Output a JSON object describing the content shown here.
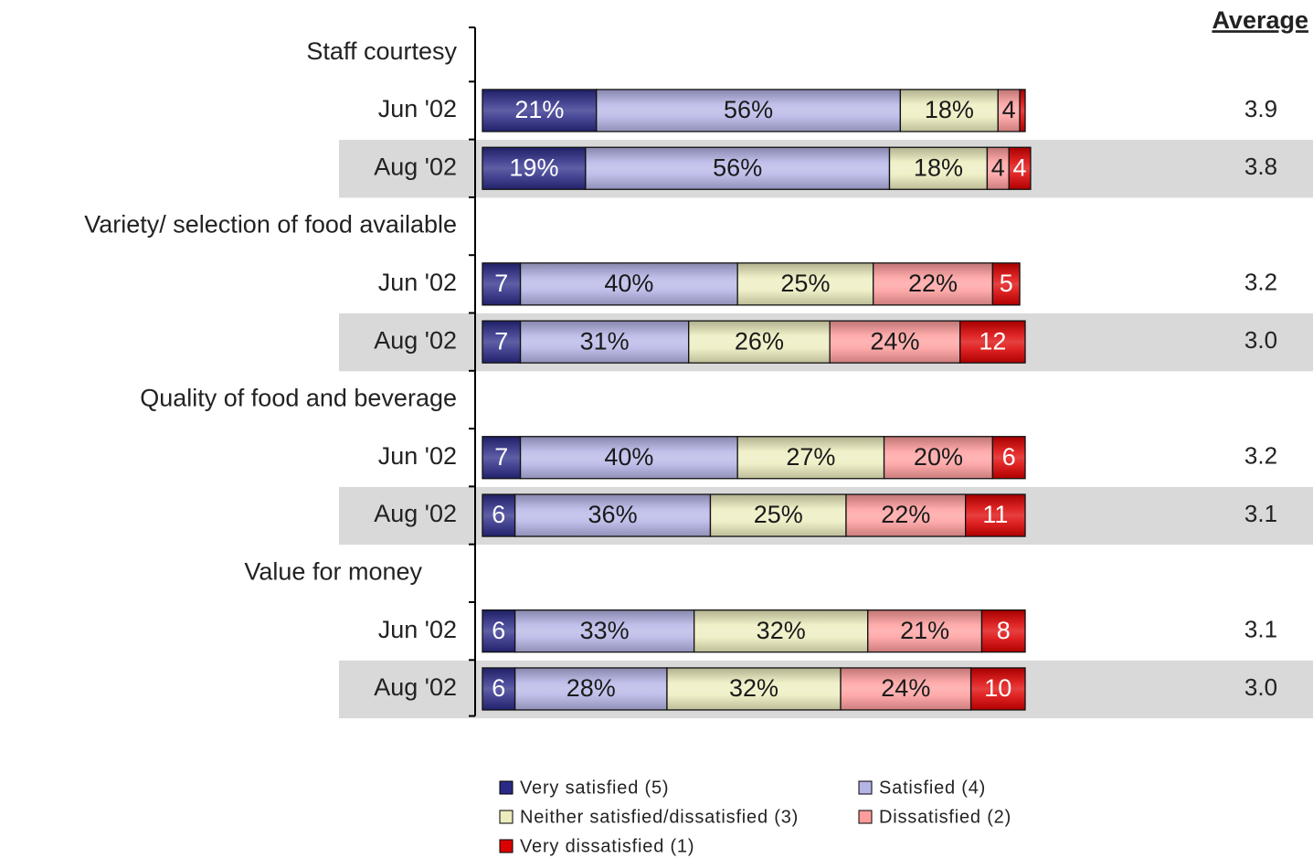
{
  "chart_data": {
    "type": "stacked-bar-horizontal",
    "groups": [
      {
        "name": "Staff courtesy",
        "categories": [
          "Jun '02",
          "Aug '02"
        ]
      },
      {
        "name": "Variety/ selection of food available",
        "categories": [
          "Jun '02",
          "Aug '02"
        ]
      },
      {
        "name": "Quality of food and beverage",
        "categories": [
          "Jun '02",
          "Aug '02"
        ]
      },
      {
        "name": "Value for money",
        "categories": [
          "Jun '02",
          "Aug '02"
        ]
      }
    ],
    "series": [
      {
        "name": "Very satisfied (5)",
        "color": "#2a2a86",
        "text_color": "#ffffff",
        "values": [
          21,
          19,
          7,
          7,
          7,
          6,
          6,
          6
        ],
        "value_labels": [
          "21%",
          "19%",
          "7",
          "7",
          "7",
          "6",
          "6",
          "6"
        ]
      },
      {
        "name": "Satisfied (4)",
        "color": "#b4b4e6",
        "text_color": "#1a1a1a",
        "values": [
          56,
          56,
          40,
          31,
          40,
          36,
          33,
          28
        ],
        "value_labels": [
          "56%",
          "56%",
          "40%",
          "31%",
          "40%",
          "36%",
          "33%",
          "28%"
        ]
      },
      {
        "name": "Neither satisfied/dissatisfied (3)",
        "color": "#ececbe",
        "text_color": "#1a1a1a",
        "values": [
          18,
          18,
          25,
          26,
          27,
          25,
          32,
          32
        ],
        "value_labels": [
          "18%",
          "18%",
          "25%",
          "26%",
          "27%",
          "25%",
          "32%",
          "32%"
        ]
      },
      {
        "name": "Dissatisfied (2)",
        "color": "#ff9c9c",
        "text_color": "#1a1a1a",
        "values": [
          4,
          4,
          22,
          24,
          20,
          22,
          21,
          24
        ],
        "value_labels": [
          "4",
          "4",
          "22%",
          "24%",
          "20%",
          "22%",
          "21%",
          "24%"
        ]
      },
      {
        "name": "Very dissatisfied (1)",
        "color": "#dc0000",
        "text_color": "#ffffff",
        "values": [
          1,
          4,
          5,
          12,
          6,
          11,
          8,
          10
        ],
        "value_labels": [
          null,
          "4",
          "5",
          "12",
          "6",
          "11",
          "8",
          "10"
        ]
      }
    ],
    "average": {
      "title": "Average",
      "values": [
        3.9,
        3.8,
        3.2,
        3.0,
        3.2,
        3.1,
        3.1,
        3.0
      ],
      "value_labels": [
        "3.9",
        "3.8",
        "3.2",
        "3.0",
        "3.2",
        "3.1",
        "3.1",
        "3.0"
      ]
    }
  }
}
